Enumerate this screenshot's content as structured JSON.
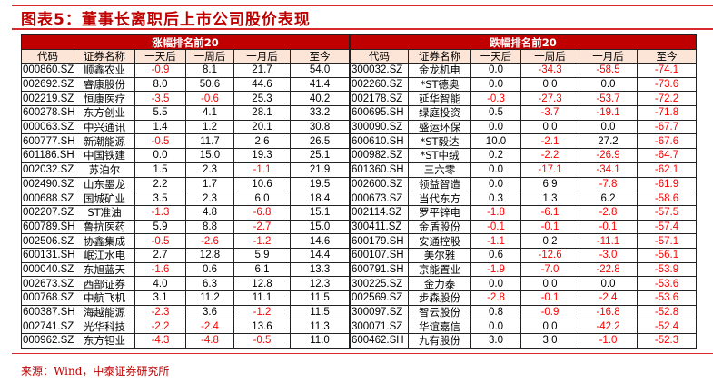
{
  "title": "图表5：董事长离职后上市公司股价表现",
  "columns": [
    "代码",
    "证券名称",
    "一天后",
    "一周后",
    "一月后",
    "至今"
  ],
  "gainers": {
    "label": "涨幅排名前20",
    "rows": [
      [
        "000860.SZ",
        "顺鑫农业",
        "-0.9",
        "8.1",
        "21.7",
        "54.0"
      ],
      [
        "002692.SZ",
        "睿康股份",
        "8.0",
        "50.6",
        "44.6",
        "41.4"
      ],
      [
        "002219.SZ",
        "恒康医疗",
        "-3.5",
        "-0.6",
        "25.3",
        "40.2"
      ],
      [
        "600278.SH",
        "东方创业",
        "5.5",
        "4.1",
        "28.1",
        "33.2"
      ],
      [
        "000063.SZ",
        "中兴通讯",
        "1.4",
        "1.2",
        "20.1",
        "30.8"
      ],
      [
        "600777.SH",
        "新潮能源",
        "-0.5",
        "11.7",
        "2.6",
        "26.5"
      ],
      [
        "601186.SH",
        "中国铁建",
        "0.0",
        "15.0",
        "19.3",
        "25.1"
      ],
      [
        "002032.SZ",
        "苏泊尔",
        "1.5",
        "2.3",
        "-1.1",
        "21.9"
      ],
      [
        "002490.SZ",
        "山东墨龙",
        "2.2",
        "1.7",
        "10.6",
        "19.5"
      ],
      [
        "000688.SZ",
        "国城矿业",
        "3.5",
        "2.3",
        "6.0",
        "18.4"
      ],
      [
        "002207.SZ",
        "ST准油",
        "-1.3",
        "4.8",
        "-6.8",
        "15.1"
      ],
      [
        "600789.SH",
        "鲁抗医药",
        "5.9",
        "8.8",
        "-2.7",
        "15.0"
      ],
      [
        "002506.SZ",
        "协鑫集成",
        "-0.5",
        "-2.6",
        "-1.2",
        "14.6"
      ],
      [
        "600131.SH",
        "岷江水电",
        "2.7",
        "12.8",
        "5.9",
        "14.4"
      ],
      [
        "000040.SZ",
        "东旭蓝天",
        "-1.6",
        "0.6",
        "6.1",
        "13.3"
      ],
      [
        "002673.SZ",
        "西部证券",
        "4.0",
        "6.3",
        "12.8",
        "12.3"
      ],
      [
        "000768.SZ",
        "中航飞机",
        "3.1",
        "11.2",
        "11.1",
        "11.5"
      ],
      [
        "600387.SH",
        "海越能源",
        "-2.3",
        "3.6",
        "-1.2",
        "11.5"
      ],
      [
        "002741.SZ",
        "光华科技",
        "-2.2",
        "-2.4",
        "13.6",
        "11.3"
      ],
      [
        "000962.SZ",
        "东方钽业",
        "-4.3",
        "-4.8",
        "-0.5",
        "11.0"
      ]
    ]
  },
  "losers": {
    "label": "跌幅排名前20",
    "rows": [
      [
        "300032.SZ",
        "金龙机电",
        "0.0",
        "-34.3",
        "-58.5",
        "-74.1"
      ],
      [
        "002260.SZ",
        "*ST德奥",
        "0.0",
        "0.0",
        "0.0",
        "-73.6"
      ],
      [
        "002178.SZ",
        "延华智能",
        "-0.3",
        "-27.3",
        "-53.7",
        "-72.2"
      ],
      [
        "600695.SH",
        "绿庭投资",
        "0.5",
        "-3.7",
        "-19.1",
        "-71.8"
      ],
      [
        "300090.SZ",
        "盛运环保",
        "0.0",
        "0.0",
        "0.0",
        "-67.7"
      ],
      [
        "600610.SH",
        "*ST毅达",
        "10.0",
        "-2.1",
        "27.2",
        "-67.6"
      ],
      [
        "000982.SZ",
        "*ST中绒",
        "0.2",
        "-2.2",
        "-26.9",
        "-64.7"
      ],
      [
        "601360.SH",
        "三六零",
        "0.0",
        "-17.1",
        "-34.1",
        "-62.1"
      ],
      [
        "002600.SZ",
        "领益智造",
        "0.0",
        "6.9",
        "-7.8",
        "-61.9"
      ],
      [
        "000673.SZ",
        "当代东方",
        "0.3",
        "1.3",
        "6.2",
        "-58.6"
      ],
      [
        "002114.SZ",
        "罗平锌电",
        "-1.8",
        "-6.1",
        "-2.8",
        "-57.5"
      ],
      [
        "300411.SZ",
        "金盾股份",
        "-0.1",
        "-0.1",
        "-0.1",
        "-57.4"
      ],
      [
        "600179.SH",
        "安通控股",
        "-1.1",
        "0.2",
        "-11.1",
        "-57.1"
      ],
      [
        "600107.SH",
        "美尔雅",
        "0.6",
        "-12.6",
        "-3.0",
        "-56.1"
      ],
      [
        "600791.SH",
        "京能置业",
        "-1.9",
        "-7.0",
        "-22.8",
        "-53.9"
      ],
      [
        "300225.SZ",
        "金力泰",
        "0.0",
        "0.0",
        "0.0",
        "-53.6"
      ],
      [
        "002569.SZ",
        "步森股份",
        "-2.8",
        "-0.1",
        "-2.4",
        "-53.6"
      ],
      [
        "300097.SZ",
        "智云股份",
        "0.8",
        "-0.9",
        "-16.8",
        "-52.8"
      ],
      [
        "300071.SZ",
        "华谊嘉信",
        "0.0",
        "0.0",
        "-42.2",
        "-52.4"
      ],
      [
        "600462.SH",
        "九有股份",
        "3.0",
        "3.0",
        "-1.0",
        "-52.3"
      ]
    ]
  },
  "source": "来源：Wind，中泰证券研究所",
  "colors": {
    "accent": "#c00000",
    "header_bg": "#fce4d6",
    "negative": "#ff0000"
  }
}
